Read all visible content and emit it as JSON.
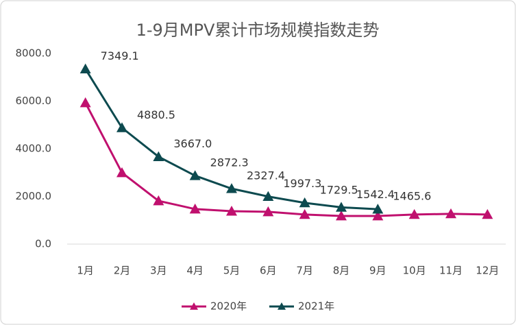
{
  "chart_data": {
    "type": "line",
    "title": "1-9月MPV累计市场规模指数走势",
    "categories": [
      "1月",
      "2月",
      "3月",
      "4月",
      "5月",
      "6月",
      "7月",
      "8月",
      "9月",
      "10月",
      "11月",
      "12月"
    ],
    "series": [
      {
        "name": "2020年",
        "color": "#c0106e",
        "values": [
          5930,
          2995,
          1815,
          1470,
          1380,
          1355,
          1240,
          1180,
          1180,
          1240,
          1270,
          1240
        ]
      },
      {
        "name": "2021年",
        "color": "#0d4a4f",
        "values": [
          7349.1,
          4880.5,
          3667.0,
          2872.3,
          2327.4,
          1997.3,
          1729.5,
          1542.4,
          1465.6,
          null,
          null,
          null
        ],
        "value_labels": [
          "7349.1",
          "4880.5",
          "3667.0",
          "2872.3",
          "2327.4",
          "1997.3",
          "1729.5",
          "1542.4",
          "1465.6",
          null,
          null,
          null
        ]
      }
    ],
    "ylim": [
      0,
      8000
    ],
    "yticks": [
      {
        "value": 0,
        "label": "0.0"
      },
      {
        "value": 2000,
        "label": "2000.0"
      },
      {
        "value": 4000,
        "label": "4000.0"
      },
      {
        "value": 6000,
        "label": "6000.0"
      },
      {
        "value": 8000,
        "label": "8000.0"
      }
    ],
    "grid": false,
    "legend": "bottom"
  }
}
